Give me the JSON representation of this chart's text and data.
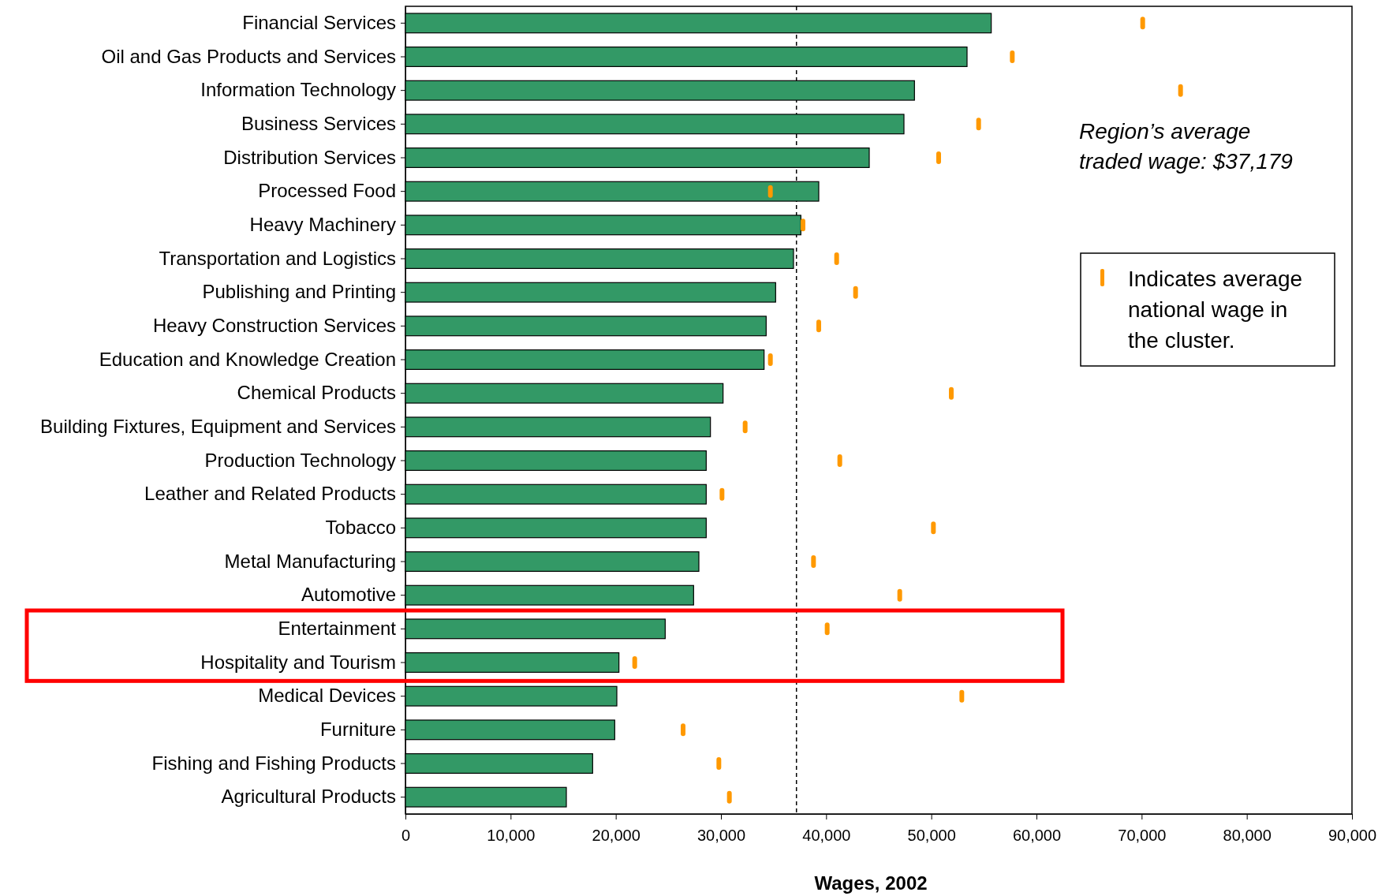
{
  "chart_data": {
    "type": "bar",
    "orientation": "horizontal",
    "xlabel": "Wages, 2002",
    "categories": [
      "Financial Services",
      "Oil and Gas Products and Services",
      "Information Technology",
      "Business Services",
      "Distribution Services",
      "Processed Food",
      "Heavy Machinery",
      "Transportation and Logistics",
      "Publishing and Printing",
      "Heavy Construction Services",
      "Education and Knowledge Creation",
      "Chemical Products",
      "Building Fixtures, Equipment and Services",
      "Production Technology",
      "Leather and Related Products",
      "Tobacco",
      "Metal Manufacturing",
      "Automotive",
      "Entertainment",
      "Hospitality and Tourism",
      "Medical Devices",
      "Furniture",
      "Fishing and Fishing Products",
      "Agricultural Products"
    ],
    "series": [
      {
        "type": "bar",
        "color": "#339966",
        "values": [
          55700,
          53400,
          48400,
          47400,
          44100,
          39300,
          37600,
          36900,
          35200,
          34300,
          34100,
          30200,
          29000,
          28600,
          28600,
          28600,
          27900,
          27400,
          24700,
          20300,
          20100,
          19900,
          17800,
          15300
        ]
      },
      {
        "type": "scatter",
        "name": "Indicates average national wage in the cluster.",
        "color": "#ff9900",
        "values": [
          70100,
          57700,
          73700,
          54500,
          50700,
          34700,
          37800,
          41000,
          42800,
          39300,
          34700,
          51900,
          32300,
          41300,
          30100,
          50200,
          38800,
          47000,
          40100,
          21800,
          52900,
          26400,
          29800,
          30800
        ]
      }
    ],
    "xlim": [
      0,
      90000
    ],
    "xticks": [
      {
        "value": 0,
        "label": "0"
      },
      {
        "value": 10000,
        "label": "10,000"
      },
      {
        "value": 20000,
        "label": "20,000"
      },
      {
        "value": 30000,
        "label": "30,000"
      },
      {
        "value": 40000,
        "label": "40,000"
      },
      {
        "value": 50000,
        "label": "50,000"
      },
      {
        "value": 60000,
        "label": "60,000"
      },
      {
        "value": 70000,
        "label": "70,000"
      },
      {
        "value": 80000,
        "label": "80,000"
      },
      {
        "value": 90000,
        "label": "90,000"
      }
    ],
    "ref_lines": [
      {
        "axis": "x",
        "value": 37179,
        "label": "Region’s average traded wage: $37,179",
        "line_style": "dashed",
        "color": "#000000"
      }
    ],
    "legend": "right",
    "grid": false
  }
}
